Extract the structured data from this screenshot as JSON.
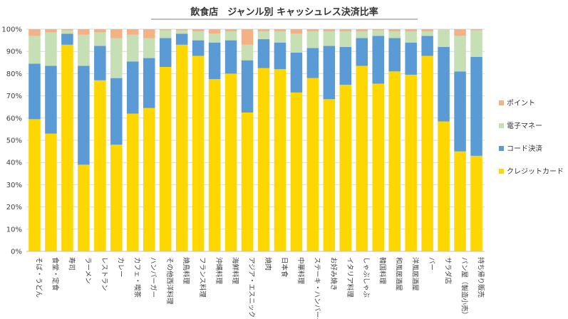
{
  "chart_data": {
    "type": "bar",
    "stacked": true,
    "title": "飲食店　ジャンル別 キャッシュレス決済比率",
    "xlabel": "",
    "ylabel": "",
    "ylim": [
      0,
      100
    ],
    "y_ticks": [
      "0%",
      "10%",
      "20%",
      "30%",
      "40%",
      "50%",
      "60%",
      "70%",
      "80%",
      "90%",
      "100%"
    ],
    "legend_position": "right",
    "categories": [
      "そば・うどん",
      "食堂・定食",
      "寿司",
      "ラーメン",
      "レストラン",
      "カレー",
      "カフェ・喫茶",
      "ハンバーガー",
      "その他西洋料理",
      "焼鳥料理",
      "フランス料理",
      "沖縄料理",
      "海鮮料理",
      "アジア・エスニック",
      "焼肉",
      "日本食",
      "中華料理",
      "ステーキ・ハンバーグ",
      "お好み焼き",
      "イタリア料理",
      "しゃぶしゃぶ",
      "韓国料理",
      "和風居酒屋",
      "洋風居酒屋",
      "バー",
      "サラダ店",
      "パン屋（製造小売）",
      "持ち帰り販売"
    ],
    "series": [
      {
        "name": "クレジットカード",
        "color": "#FFD700",
        "values": [
          59.5,
          53,
          93,
          39,
          77,
          48,
          62,
          64.5,
          83,
          93,
          88,
          77.5,
          80,
          62.5,
          82.5,
          82,
          71.5,
          78,
          68.5,
          75,
          83.5,
          75.5,
          81,
          79.5,
          88,
          58.5,
          45,
          43
        ]
      },
      {
        "name": "コード決済",
        "color": "#5B9BD5",
        "values": [
          25,
          30.5,
          5,
          44.5,
          15.5,
          30,
          23.5,
          22.5,
          13,
          5,
          7,
          16.5,
          15,
          23.5,
          13,
          12,
          18,
          13.5,
          24,
          17,
          12.5,
          21.5,
          15,
          14.5,
          9,
          33.5,
          36,
          44.5
        ]
      },
      {
        "name": "電子マネー",
        "color": "#C6DFB4",
        "values": [
          12.5,
          15,
          1.5,
          14,
          6,
          18,
          12,
          9,
          3.5,
          1.5,
          4,
          4,
          4,
          7,
          3.5,
          5,
          8.5,
          7.5,
          6.5,
          7,
          3,
          2.5,
          3,
          5,
          2,
          8,
          16,
          12
        ]
      },
      {
        "name": "ポイント",
        "color": "#F4B183",
        "values": [
          3,
          1.5,
          0.5,
          2.5,
          1.5,
          4,
          2.5,
          4,
          0.5,
          0.5,
          1,
          2,
          1,
          7,
          1,
          1,
          2,
          1,
          1,
          1,
          1,
          0.5,
          1,
          1,
          1,
          0,
          3,
          0.5
        ]
      }
    ],
    "legend_order": [
      "ポイント",
      "電子マネー",
      "コード決済",
      "クレジットカード"
    ]
  }
}
